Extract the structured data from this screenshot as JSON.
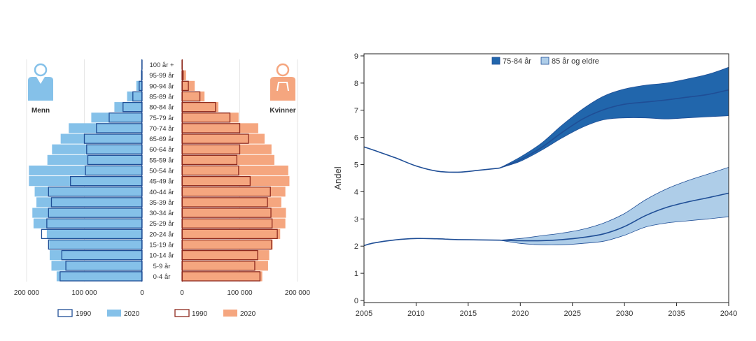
{
  "chart_data": [
    {
      "type": "population_pyramid",
      "title": "",
      "men_label": "Menn",
      "women_label": "Kvinner",
      "age_groups": [
        "0-4 år",
        "5-9 år",
        "10-14 år",
        "15-19 år",
        "20-24 år",
        "25-29 år",
        "30-34 år",
        "35-39 år",
        "40-44 år",
        "45-49 år",
        "50-54 år",
        "55-59 år",
        "60-64 år",
        "65-69 år",
        "70-74 år",
        "75-79 år",
        "80-84 år",
        "85-89 år",
        "90-94 år",
        "95-99 år",
        "100 år +"
      ],
      "x_ticks": [
        {
          "value": 200000,
          "label": "200 000"
        },
        {
          "value": 100000,
          "label": "100 000"
        },
        {
          "value": 0,
          "label": "0"
        }
      ],
      "x_ticks_right": [
        {
          "value": 0,
          "label": "0"
        },
        {
          "value": 100000,
          "label": "100 000"
        },
        {
          "value": 200000,
          "label": "200 000"
        }
      ],
      "xlim": [
        0,
        200000
      ],
      "series": [
        {
          "name": "1990",
          "sex": "Menn",
          "style": "outline",
          "values": [
            142000,
            132000,
            139000,
            162000,
            174000,
            165000,
            162000,
            157000,
            162000,
            124000,
            98000,
            94000,
            96000,
            100000,
            79000,
            57000,
            33000,
            16000,
            5000,
            1000,
            150
          ]
        },
        {
          "name": "2020",
          "sex": "Menn",
          "style": "filled",
          "values": [
            148000,
            157000,
            160000,
            161000,
            165000,
            188000,
            190000,
            183000,
            186000,
            196000,
            196000,
            164000,
            156000,
            141000,
            127000,
            88000,
            48000,
            26000,
            10000,
            2000,
            200
          ]
        },
        {
          "name": "1990",
          "sex": "Kvinner",
          "style": "outline",
          "values": [
            135000,
            126000,
            131000,
            155000,
            165000,
            156000,
            154000,
            148000,
            153000,
            118000,
            98000,
            95000,
            100000,
            115000,
            100000,
            83000,
            58000,
            31000,
            11000,
            2000,
            150
          ]
        },
        {
          "name": "2020",
          "sex": "Kvinner",
          "style": "filled",
          "values": [
            139000,
            149000,
            151000,
            157000,
            170000,
            179000,
            180000,
            172000,
            179000,
            186000,
            184000,
            160000,
            155000,
            143000,
            132000,
            98000,
            63000,
            39000,
            22000,
            7000,
            1000
          ]
        }
      ],
      "legend": {
        "men": [
          {
            "label": "1990"
          },
          {
            "label": "2020"
          }
        ],
        "women": [
          {
            "label": "1990"
          },
          {
            "label": "2020"
          }
        ]
      },
      "colors": {
        "men_fill": "#85c1e9",
        "men_line": "#1f4e96",
        "women_fill": "#f5a67f",
        "women_line": "#8e2a1e",
        "grid": "#e6e6e6",
        "axis": "#444444"
      }
    },
    {
      "type": "line_with_bands",
      "title": "",
      "xlabel": "",
      "ylabel": "Andel",
      "xlim": [
        2005,
        2040
      ],
      "ylim": [
        0,
        9
      ],
      "x_ticks": [
        2005,
        2010,
        2015,
        2020,
        2025,
        2030,
        2035,
        2040
      ],
      "y_ticks": [
        0,
        1,
        2,
        3,
        4,
        5,
        6,
        7,
        8,
        9
      ],
      "legend_position": "top",
      "series": [
        {
          "name": "75-84 år",
          "color": "#2166ac",
          "band_color": "#2166ac",
          "history_x": [
            2005,
            2006,
            2008,
            2010,
            2012,
            2014,
            2016,
            2018
          ],
          "history_y": [
            5.65,
            5.52,
            5.25,
            4.95,
            4.76,
            4.72,
            4.79,
            4.87
          ],
          "projection_x": [
            2018,
            2020,
            2022,
            2024,
            2026,
            2028,
            2030,
            2032,
            2034,
            2036,
            2038,
            2040
          ],
          "median": [
            4.87,
            5.18,
            5.62,
            6.18,
            6.68,
            7.02,
            7.22,
            7.3,
            7.38,
            7.48,
            7.58,
            7.75
          ],
          "low": [
            4.87,
            5.12,
            5.52,
            5.98,
            6.38,
            6.65,
            6.72,
            6.72,
            6.68,
            6.72,
            6.76,
            6.8
          ],
          "high": [
            4.87,
            5.28,
            5.78,
            6.45,
            7.05,
            7.52,
            7.78,
            7.92,
            8.0,
            8.15,
            8.32,
            8.58
          ]
        },
        {
          "name": "85 år og eldre",
          "color": "#aecde8",
          "band_color": "#aecde8",
          "history_x": [
            2005,
            2006,
            2008,
            2010,
            2012,
            2014,
            2016,
            2018
          ],
          "history_y": [
            2.02,
            2.12,
            2.23,
            2.28,
            2.27,
            2.24,
            2.23,
            2.22
          ],
          "projection_x": [
            2018,
            2020,
            2022,
            2024,
            2026,
            2028,
            2030,
            2032,
            2034,
            2036,
            2038,
            2040
          ],
          "median": [
            2.22,
            2.2,
            2.2,
            2.24,
            2.32,
            2.45,
            2.72,
            3.12,
            3.42,
            3.62,
            3.78,
            3.95
          ],
          "low": [
            2.22,
            2.1,
            2.05,
            2.05,
            2.1,
            2.18,
            2.4,
            2.7,
            2.85,
            2.93,
            3.0,
            3.08
          ],
          "high": [
            2.22,
            2.28,
            2.38,
            2.48,
            2.62,
            2.85,
            3.2,
            3.7,
            4.1,
            4.4,
            4.65,
            4.9
          ]
        }
      ],
      "colors": {
        "median_line": "#1f4e96",
        "axis": "#222222",
        "grid": "#ffffff"
      }
    }
  ]
}
